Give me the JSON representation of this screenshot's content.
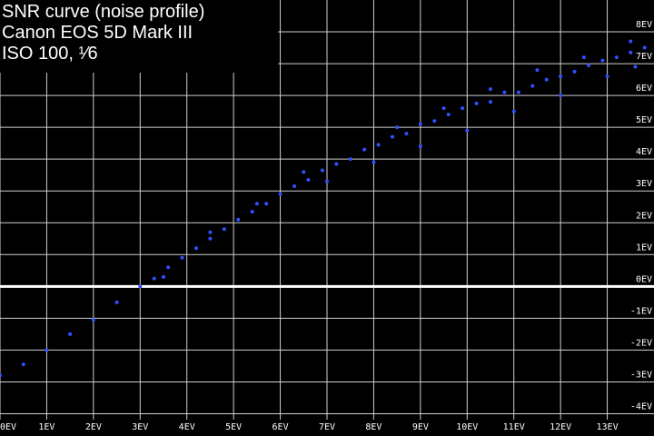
{
  "chart_data": {
    "type": "scatter",
    "title_lines": [
      "SNR curve (noise profile)",
      "Canon EOS 5D Mark III",
      "ISO 100, ¹⁄6"
    ],
    "color": "#2d52ff",
    "grid": true,
    "xlim": [
      0,
      14
    ],
    "ylim": [
      -4.7,
      9.0
    ],
    "xticks": [
      {
        "value": 0,
        "label": "0EV"
      },
      {
        "value": 1,
        "label": "1EV"
      },
      {
        "value": 2,
        "label": "2EV"
      },
      {
        "value": 3,
        "label": "3EV"
      },
      {
        "value": 4,
        "label": "4EV"
      },
      {
        "value": 5,
        "label": "5EV"
      },
      {
        "value": 6,
        "label": "6EV"
      },
      {
        "value": 7,
        "label": "7EV"
      },
      {
        "value": 8,
        "label": "8EV"
      },
      {
        "value": 9,
        "label": "9EV"
      },
      {
        "value": 10,
        "label": "10EV"
      },
      {
        "value": 11,
        "label": "11EV"
      },
      {
        "value": 12,
        "label": "12EV"
      },
      {
        "value": 13,
        "label": "13EV"
      }
    ],
    "yticks": [
      {
        "value": -4,
        "label": "-4EV"
      },
      {
        "value": -3,
        "label": "-3EV"
      },
      {
        "value": -2,
        "label": "-2EV"
      },
      {
        "value": -1,
        "label": "-1EV"
      },
      {
        "value": 0,
        "label": "0EV"
      },
      {
        "value": 1,
        "label": "1EV"
      },
      {
        "value": 2,
        "label": "2EV"
      },
      {
        "value": 3,
        "label": "3EV"
      },
      {
        "value": 4,
        "label": "4EV"
      },
      {
        "value": 5,
        "label": "5EV"
      },
      {
        "value": 6,
        "label": "6EV"
      },
      {
        "value": 7,
        "label": "7EV"
      },
      {
        "value": 8,
        "label": "8EV"
      }
    ],
    "x": [
      0.0,
      0.5,
      1.0,
      1.5,
      2.0,
      2.5,
      3.0,
      3.3,
      3.6,
      3.9,
      4.2,
      4.5,
      4.8,
      5.1,
      5.4,
      5.7,
      6.0,
      6.3,
      6.6,
      6.9,
      7.2,
      7.5,
      7.8,
      8.1,
      8.4,
      8.7,
      9.0,
      9.3,
      9.6,
      9.9,
      10.2,
      10.5,
      10.8,
      11.1,
      11.4,
      11.7,
      12.0,
      12.3,
      12.6,
      12.9,
      13.2,
      13.5,
      13.8,
      7.0,
      8.0,
      9.0,
      10.0,
      11.0,
      12.0,
      13.0,
      13.6,
      8.5,
      9.5,
      10.5,
      11.5,
      12.5,
      13.5,
      6.5,
      5.5,
      4.5,
      3.5
    ],
    "y": [
      -2.8,
      -2.45,
      -2.0,
      -1.5,
      -1.05,
      -0.5,
      0.0,
      0.25,
      0.6,
      0.9,
      1.2,
      1.5,
      1.8,
      2.1,
      2.35,
      2.6,
      2.9,
      3.15,
      3.35,
      3.65,
      3.85,
      4.0,
      4.3,
      4.45,
      4.7,
      4.8,
      5.1,
      5.2,
      5.4,
      5.6,
      5.75,
      5.8,
      6.1,
      6.1,
      6.3,
      6.5,
      6.6,
      6.75,
      6.95,
      7.1,
      7.2,
      7.35,
      7.5,
      3.3,
      3.9,
      4.4,
      4.9,
      5.5,
      6.0,
      6.6,
      6.9,
      5.0,
      5.6,
      6.2,
      6.8,
      7.2,
      7.7,
      3.6,
      2.6,
      1.7,
      0.3
    ]
  }
}
